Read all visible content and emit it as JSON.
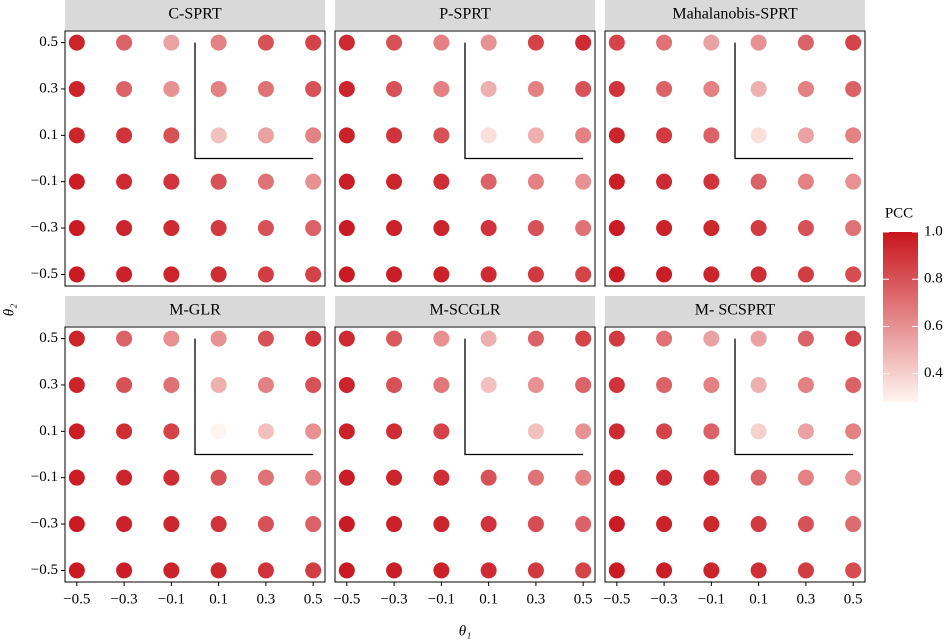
{
  "chart_data": {
    "type": "facet-dot",
    "x_label": "θ₁",
    "y_label": "θ₂",
    "x": [
      -0.5,
      -0.3,
      -0.1,
      0.1,
      0.3,
      0.5
    ],
    "y": [
      0.5,
      0.3,
      0.1,
      -0.1,
      -0.3,
      -0.5
    ],
    "xlim": [
      -0.55,
      0.55
    ],
    "ylim": [
      -0.55,
      0.55
    ],
    "xticks": [
      {
        "value": -0.5,
        "label": "−0.5"
      },
      {
        "value": -0.3,
        "label": "−0.3"
      },
      {
        "value": -0.1,
        "label": "−0.1"
      },
      0.1,
      0.3,
      0.5
    ],
    "yticks": [
      0.5,
      0.3,
      0.1,
      {
        "value": -0.1,
        "label": "−0.1"
      },
      {
        "value": -0.3,
        "label": "−0.3"
      },
      {
        "value": -0.5,
        "label": "−0.5"
      }
    ],
    "color_label": "PCC",
    "color_lim": [
      0.28,
      1.0
    ],
    "color_ticks": [
      0.4,
      0.6,
      0.8,
      {
        "value": 1,
        "label": "1.0"
      }
    ],
    "low_color": "#fff5f0",
    "high_color": "#c8141c",
    "panels": [
      {
        "title": "C-SPRT",
        "values": [
          [
            0.95,
            0.75,
            0.55,
            0.65,
            0.8,
            0.85
          ],
          [
            0.95,
            0.75,
            0.6,
            0.65,
            0.7,
            0.8
          ],
          [
            0.95,
            0.9,
            0.8,
            0.45,
            0.55,
            0.65
          ],
          [
            0.97,
            0.93,
            0.9,
            0.8,
            0.7,
            0.6
          ],
          [
            0.98,
            0.95,
            0.93,
            0.88,
            0.8,
            0.75
          ],
          [
            0.98,
            0.96,
            0.95,
            0.92,
            0.87,
            0.85
          ]
        ]
      },
      {
        "title": "P-SPRT",
        "values": [
          [
            0.93,
            0.8,
            0.65,
            0.6,
            0.85,
            0.93
          ],
          [
            0.95,
            0.8,
            0.65,
            0.5,
            0.65,
            0.8
          ],
          [
            0.96,
            0.9,
            0.8,
            0.35,
            0.5,
            0.65
          ],
          [
            0.97,
            0.95,
            0.92,
            0.75,
            0.65,
            0.6
          ],
          [
            0.98,
            0.96,
            0.95,
            0.9,
            0.8,
            0.7
          ],
          [
            0.98,
            0.97,
            0.96,
            0.93,
            0.88,
            0.85
          ]
        ]
      },
      {
        "title": "Mahalanobis-SPRT",
        "values": [
          [
            0.85,
            0.7,
            0.55,
            0.6,
            0.75,
            0.85
          ],
          [
            0.9,
            0.75,
            0.65,
            0.5,
            0.65,
            0.75
          ],
          [
            0.95,
            0.88,
            0.75,
            0.35,
            0.55,
            0.65
          ],
          [
            0.97,
            0.93,
            0.9,
            0.75,
            0.65,
            0.6
          ],
          [
            0.98,
            0.96,
            0.94,
            0.88,
            0.8,
            0.7
          ],
          [
            0.98,
            0.97,
            0.95,
            0.92,
            0.87,
            0.82
          ]
        ]
      },
      {
        "title": "M-GLR",
        "values": [
          [
            0.95,
            0.75,
            0.6,
            0.6,
            0.8,
            0.9
          ],
          [
            0.95,
            0.8,
            0.7,
            0.5,
            0.65,
            0.8
          ],
          [
            0.97,
            0.92,
            0.85,
            0.28,
            0.45,
            0.6
          ],
          [
            0.97,
            0.95,
            0.92,
            0.8,
            0.7,
            0.65
          ],
          [
            0.98,
            0.96,
            0.94,
            0.9,
            0.8,
            0.75
          ],
          [
            0.98,
            0.97,
            0.96,
            0.94,
            0.9,
            0.87
          ]
        ]
      },
      {
        "title": "M-SCGLR",
        "values": [
          [
            0.93,
            0.78,
            0.6,
            0.5,
            0.75,
            0.85
          ],
          [
            0.95,
            0.8,
            0.68,
            0.45,
            0.6,
            0.75
          ],
          [
            0.96,
            0.92,
            0.85,
            null,
            0.45,
            0.6
          ],
          [
            0.97,
            0.95,
            0.92,
            0.8,
            0.7,
            0.65
          ],
          [
            0.98,
            0.96,
            0.95,
            0.9,
            0.82,
            0.75
          ],
          [
            0.98,
            0.97,
            0.96,
            0.93,
            0.88,
            0.85
          ]
        ]
      },
      {
        "title": "M- SCSPRT",
        "values": [
          [
            0.88,
            0.7,
            0.55,
            0.55,
            0.75,
            0.85
          ],
          [
            0.9,
            0.75,
            0.65,
            0.5,
            0.65,
            0.75
          ],
          [
            0.93,
            0.85,
            0.75,
            0.4,
            0.55,
            0.65
          ],
          [
            0.96,
            0.93,
            0.9,
            0.75,
            0.65,
            0.6
          ],
          [
            0.98,
            0.96,
            0.94,
            0.88,
            0.8,
            0.72
          ],
          [
            0.98,
            0.97,
            0.95,
            0.92,
            0.87,
            0.82
          ]
        ]
      }
    ]
  }
}
